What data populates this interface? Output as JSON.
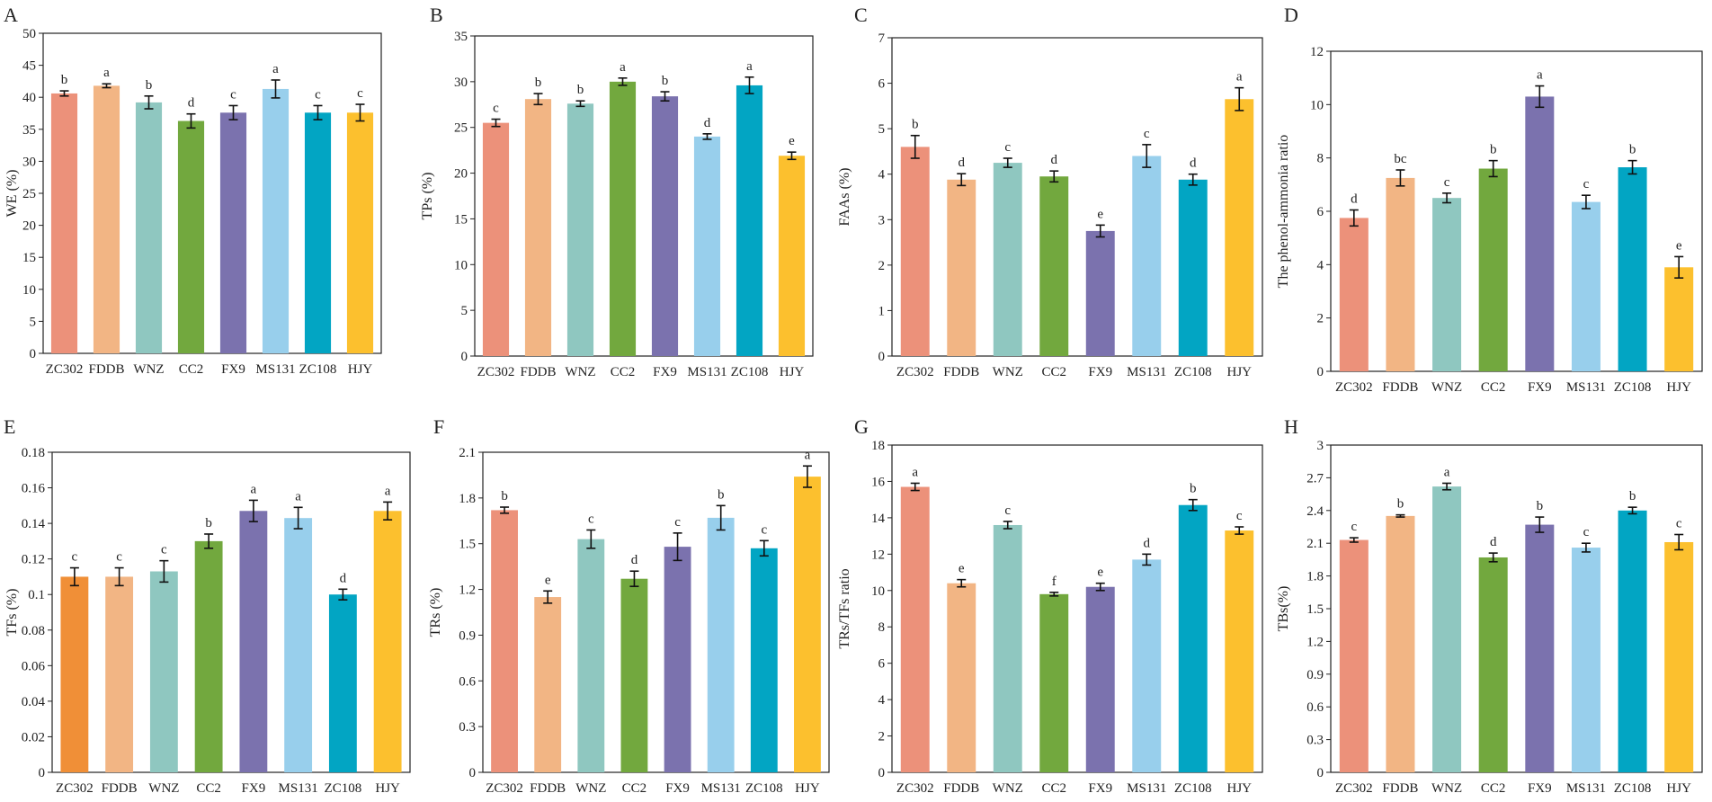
{
  "figure": {
    "categories": [
      "ZC302",
      "FDDB",
      "WNZ",
      "CC2",
      "FX9",
      "MS131",
      "ZC108",
      "HJY"
    ],
    "colors": {
      "ZC302": "#ec917a",
      "FDDB": "#f2b584",
      "WNZ": "#8fc7c0",
      "CC2": "#72a83e",
      "FX9": "#7b72ae",
      "MS131": "#98cfec",
      "ZC108": "#02a5c3",
      "HJY": "#fcc02e",
      "ZC302_alt": "#f08f37",
      "axis": "#222222"
    }
  },
  "chart_data": [
    {
      "type": "bar",
      "panel": "A",
      "title": "",
      "xlabel": "",
      "ylabel": "WE (%)",
      "categories": [
        "ZC302",
        "FDDB",
        "WNZ",
        "CC2",
        "FX9",
        "MS131",
        "ZC108",
        "HJY"
      ],
      "values": [
        40.6,
        41.8,
        39.2,
        36.3,
        37.6,
        41.3,
        37.6,
        37.6
      ],
      "errors": [
        0.4,
        0.3,
        1.0,
        1.1,
        1.1,
        1.4,
        1.1,
        1.3
      ],
      "letters": [
        "b",
        "a",
        "b",
        "d",
        "c",
        "a",
        "c",
        "c"
      ],
      "ylim": [
        0,
        50
      ],
      "ticks": [
        "0",
        "5",
        "10",
        "15",
        "20",
        "25",
        "30",
        "35",
        "40",
        "45",
        "50"
      ]
    },
    {
      "type": "bar",
      "panel": "B",
      "title": "",
      "xlabel": "",
      "ylabel": "TPs (%)",
      "categories": [
        "ZC302",
        "FDDB",
        "WNZ",
        "CC2",
        "FX9",
        "MS131",
        "ZC108",
        "HJY"
      ],
      "values": [
        25.5,
        28.1,
        27.6,
        30.0,
        28.4,
        24.0,
        29.6,
        21.9
      ],
      "errors": [
        0.4,
        0.6,
        0.3,
        0.4,
        0.5,
        0.3,
        0.9,
        0.4
      ],
      "letters": [
        "c",
        "b",
        "b",
        "a",
        "b",
        "d",
        "a",
        "e"
      ],
      "ylim": [
        0,
        35
      ],
      "ticks": [
        "0",
        "5",
        "10",
        "15",
        "20",
        "25",
        "30",
        "35"
      ]
    },
    {
      "type": "bar",
      "panel": "C",
      "title": "",
      "xlabel": "",
      "ylabel": "FAAs (%)",
      "categories": [
        "ZC302",
        "FDDB",
        "WNZ",
        "CC2",
        "FX9",
        "MS131",
        "ZC108",
        "HJY"
      ],
      "values": [
        4.6,
        3.88,
        4.25,
        3.95,
        2.75,
        4.4,
        3.88,
        5.65
      ],
      "errors": [
        0.25,
        0.13,
        0.1,
        0.12,
        0.13,
        0.25,
        0.12,
        0.25
      ],
      "letters": [
        "b",
        "d",
        "c",
        "d",
        "e",
        "c",
        "d",
        "a"
      ],
      "ylim": [
        0,
        7
      ],
      "ticks": [
        "0",
        "1",
        "2",
        "3",
        "4",
        "5",
        "6",
        "7"
      ]
    },
    {
      "type": "bar",
      "panel": "D",
      "title": "",
      "xlabel": "",
      "ylabel": "The phenol-ammonia ratio",
      "categories": [
        "ZC302",
        "FDDB",
        "WNZ",
        "CC2",
        "FX9",
        "MS131",
        "ZC108",
        "HJY"
      ],
      "values": [
        5.75,
        7.25,
        6.5,
        7.6,
        10.3,
        6.35,
        7.65,
        3.9
      ],
      "errors": [
        0.3,
        0.3,
        0.18,
        0.3,
        0.4,
        0.25,
        0.25,
        0.4
      ],
      "letters": [
        "d",
        "bc",
        "c",
        "b",
        "a",
        "c",
        "b",
        "e"
      ],
      "ylim": [
        0,
        12
      ],
      "ticks": [
        "0",
        "2",
        "4",
        "6",
        "8",
        "10",
        "12"
      ]
    },
    {
      "type": "bar",
      "panel": "E",
      "title": "",
      "xlabel": "",
      "ylabel": "TFs (%)",
      "categories": [
        "ZC302",
        "FDDB",
        "WNZ",
        "CC2",
        "FX9",
        "MS131",
        "ZC108",
        "HJY"
      ],
      "values": [
        0.11,
        0.11,
        0.113,
        0.13,
        0.147,
        0.143,
        0.1,
        0.147
      ],
      "errors": [
        0.005,
        0.005,
        0.006,
        0.004,
        0.006,
        0.006,
        0.003,
        0.005
      ],
      "letters": [
        "c",
        "c",
        "c",
        "b",
        "a",
        "a",
        "d",
        "a"
      ],
      "ylim": [
        0,
        0.18
      ],
      "ticks": [
        "0",
        "0.02",
        "0.04",
        "0.06",
        "0.08",
        "0.1",
        "0.12",
        "0.14",
        "0.16",
        "0.18"
      ]
    },
    {
      "type": "bar",
      "panel": "F",
      "title": "",
      "xlabel": "",
      "ylabel": "TRs (%)",
      "categories": [
        "ZC302",
        "FDDB",
        "WNZ",
        "CC2",
        "FX9",
        "MS131",
        "ZC108",
        "HJY"
      ],
      "values": [
        1.72,
        1.15,
        1.53,
        1.27,
        1.48,
        1.67,
        1.47,
        1.94
      ],
      "errors": [
        0.02,
        0.04,
        0.06,
        0.05,
        0.09,
        0.08,
        0.05,
        0.07
      ],
      "letters": [
        "b",
        "e",
        "c",
        "d",
        "c",
        "b",
        "c",
        "a"
      ],
      "ylim": [
        0,
        2.1
      ],
      "ticks": [
        "0",
        "0.3",
        "0.6",
        "0.9",
        "1.2",
        "1.5",
        "1.8",
        "2.1"
      ]
    },
    {
      "type": "bar",
      "panel": "G",
      "title": "",
      "xlabel": "",
      "ylabel": "TRs/TFs ratio",
      "categories": [
        "ZC302",
        "FDDB",
        "WNZ",
        "CC2",
        "FX9",
        "MS131",
        "ZC108",
        "HJY"
      ],
      "values": [
        15.7,
        10.4,
        13.6,
        9.8,
        10.2,
        11.7,
        14.7,
        13.3
      ],
      "errors": [
        0.2,
        0.2,
        0.2,
        0.1,
        0.2,
        0.3,
        0.3,
        0.2
      ],
      "letters": [
        "a",
        "e",
        "c",
        "f",
        "e",
        "d",
        "b",
        "c"
      ],
      "ylim": [
        0,
        18
      ],
      "ticks": [
        "0",
        "2",
        "4",
        "6",
        "8",
        "10",
        "12",
        "14",
        "16",
        "18"
      ]
    },
    {
      "type": "bar",
      "panel": "H",
      "title": "",
      "xlabel": "",
      "ylabel": "TBs(%)",
      "categories": [
        "ZC302",
        "FDDB",
        "WNZ",
        "CC2",
        "FX9",
        "MS131",
        "ZC108",
        "HJY"
      ],
      "values": [
        2.13,
        2.35,
        2.62,
        1.97,
        2.27,
        2.06,
        2.4,
        2.11
      ],
      "errors": [
        0.02,
        0.01,
        0.03,
        0.04,
        0.07,
        0.04,
        0.03,
        0.07
      ],
      "letters": [
        "c",
        "b",
        "a",
        "d",
        "b",
        "c",
        "b",
        "c"
      ],
      "ylim": [
        0,
        3
      ],
      "ticks": [
        "0",
        "0.3",
        "0.6",
        "0.9",
        "1.2",
        "1.5",
        "1.8",
        "2.1",
        "2.4",
        "2.7",
        "3"
      ]
    }
  ]
}
